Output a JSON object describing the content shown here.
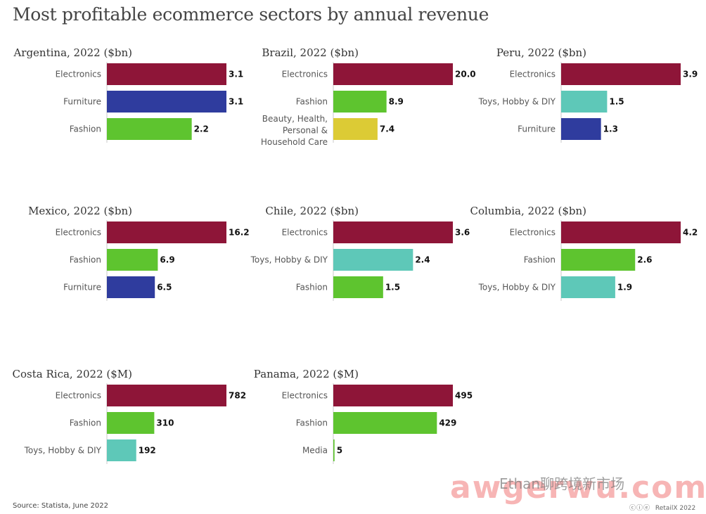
{
  "title": "Most profitable ecommerce sectors by annual revenue",
  "source": "Source: Statista, June 2022",
  "brand": "RetailX 2022",
  "watermark": {
    "main": "awgerwu.com",
    "sub": "Ethan聊跨境新市场"
  },
  "colors": {
    "Electronics": "#8e1538",
    "Furniture": "#2f3c9e",
    "Fashion": "#5ec42f",
    "Beauty": "#dccb35",
    "Toys": "#5ec8b8",
    "Media": "#5ec42f"
  },
  "chart_data": [
    {
      "type": "bar",
      "orientation": "horizontal",
      "title": "Argentina, 2022 ($bn)",
      "categories": [
        "Electronics",
        "Furniture",
        "Fashion"
      ],
      "values": [
        3.1,
        3.1,
        2.2
      ],
      "labels": [
        "3.1",
        "3.1",
        "2.2"
      ],
      "color_keys": [
        "Electronics",
        "Furniture",
        "Fashion"
      ],
      "xlim": [
        0,
        3.1
      ]
    },
    {
      "type": "bar",
      "orientation": "horizontal",
      "title": "Brazil, 2022 ($bn)",
      "categories": [
        "Electronics",
        "Fashion",
        "Beauty, Health,\nPersonal &\nHousehold Care"
      ],
      "values": [
        20.0,
        8.9,
        7.4
      ],
      "labels": [
        "20.0",
        "8.9",
        "7.4"
      ],
      "color_keys": [
        "Electronics",
        "Fashion",
        "Beauty"
      ],
      "xlim": [
        0,
        20.0
      ]
    },
    {
      "type": "bar",
      "orientation": "horizontal",
      "title": "Peru, 2022 ($bn)",
      "categories": [
        "Electronics",
        "Toys, Hobby & DIY",
        "Furniture"
      ],
      "values": [
        3.9,
        1.5,
        1.3
      ],
      "labels": [
        "3.9",
        "1.5",
        "1.3"
      ],
      "color_keys": [
        "Electronics",
        "Toys",
        "Furniture"
      ],
      "xlim": [
        0,
        3.9
      ]
    },
    {
      "type": "bar",
      "orientation": "horizontal",
      "title": "Mexico, 2022 ($bn)",
      "categories": [
        "Electronics",
        "Fashion",
        "Furniture"
      ],
      "values": [
        16.2,
        6.9,
        6.5
      ],
      "labels": [
        "16.2",
        "6.9",
        "6.5"
      ],
      "color_keys": [
        "Electronics",
        "Fashion",
        "Furniture"
      ],
      "xlim": [
        0,
        16.2
      ]
    },
    {
      "type": "bar",
      "orientation": "horizontal",
      "title": "Chile, 2022 ($bn)",
      "categories": [
        "Electronics",
        "Toys, Hobby & DIY",
        "Fashion"
      ],
      "values": [
        3.6,
        2.4,
        1.5
      ],
      "labels": [
        "3.6",
        "2.4",
        "1.5"
      ],
      "color_keys": [
        "Electronics",
        "Toys",
        "Fashion"
      ],
      "xlim": [
        0,
        3.6
      ]
    },
    {
      "type": "bar",
      "orientation": "horizontal",
      "title": "Columbia, 2022 ($bn)",
      "categories": [
        "Electronics",
        "Fashion",
        "Toys, Hobby & DIY"
      ],
      "values": [
        4.2,
        2.6,
        1.9
      ],
      "labels": [
        "4.2",
        "2.6",
        "1.9"
      ],
      "color_keys": [
        "Electronics",
        "Fashion",
        "Toys"
      ],
      "xlim": [
        0,
        4.2
      ]
    },
    {
      "type": "bar",
      "orientation": "horizontal",
      "title": "Costa Rica, 2022 ($M)",
      "categories": [
        "Electronics",
        "Fashion",
        "Toys, Hobby & DIY"
      ],
      "values": [
        782,
        310,
        192
      ],
      "labels": [
        "782",
        "310",
        "192"
      ],
      "color_keys": [
        "Electronics",
        "Fashion",
        "Toys"
      ],
      "xlim": [
        0,
        782
      ]
    },
    {
      "type": "bar",
      "orientation": "horizontal",
      "title": "Panama, 2022 ($M)",
      "categories": [
        "Electronics",
        "Fashion",
        "Media"
      ],
      "values": [
        495,
        429,
        5
      ],
      "labels": [
        "495",
        "429",
        "5"
      ],
      "color_keys": [
        "Electronics",
        "Fashion",
        "Media"
      ],
      "xlim": [
        0,
        495
      ]
    }
  ]
}
